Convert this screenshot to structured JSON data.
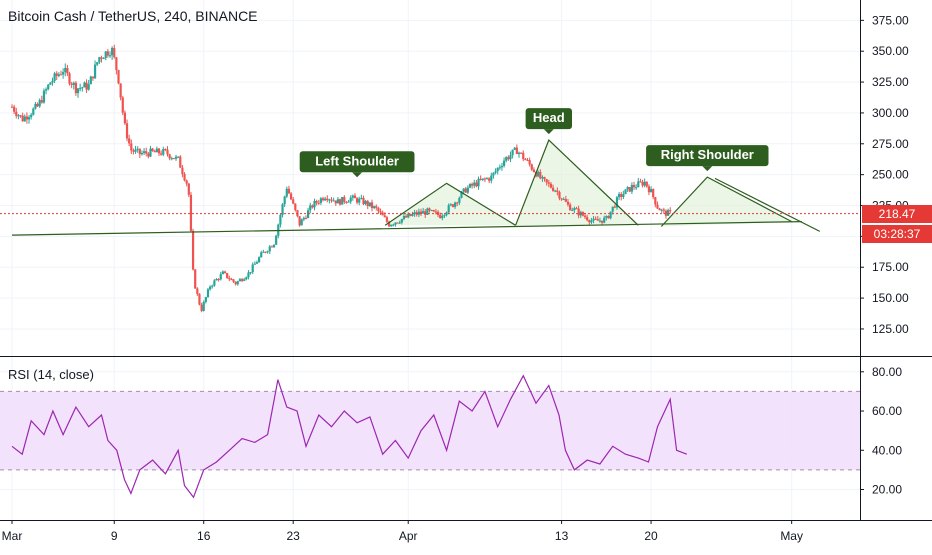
{
  "chart_data": [
    {
      "type": "candlestick",
      "title": "Bitcoin Cash / TetherUS, 240, BINANCE",
      "y_ticks": [
        "375.00",
        "350.00",
        "325.00",
        "300.00",
        "275.00",
        "250.00",
        "225.00",
        "200.00",
        "175.00",
        "150.00",
        "125.00"
      ],
      "ylim": [
        112,
        385
      ],
      "x_ticks": [
        "Mar",
        "9",
        "16",
        "23",
        "Apr",
        "13",
        "20",
        "May"
      ],
      "x_tick_days": [
        0,
        8,
        15,
        22,
        31,
        43,
        50,
        61
      ],
      "xlim_days": [
        0,
        64
      ],
      "last_price": "218.47",
      "countdown": "03:28:37",
      "grid": true,
      "up_color": "#26a69a",
      "down_color": "#ef5350",
      "price_line_color": "#e53935",
      "pattern_color": "#2e5e1f",
      "close_path": [
        [
          0.0,
          305
        ],
        [
          0.8,
          295
        ],
        [
          2.0,
          305
        ],
        [
          3.0,
          325
        ],
        [
          4.0,
          335
        ],
        [
          5.0,
          320
        ],
        [
          6.0,
          322
        ],
        [
          6.8,
          345
        ],
        [
          7.8,
          352
        ],
        [
          8.3,
          330
        ],
        [
          8.8,
          290
        ],
        [
          9.3,
          270
        ],
        [
          10.0,
          267
        ],
        [
          11.0,
          268
        ],
        [
          12.0,
          268
        ],
        [
          13.0,
          262
        ],
        [
          13.8,
          240
        ],
        [
          14.2,
          165
        ],
        [
          14.8,
          140
        ],
        [
          15.5,
          160
        ],
        [
          16.5,
          170
        ],
        [
          17.5,
          162
        ],
        [
          18.5,
          170
        ],
        [
          19.5,
          185
        ],
        [
          20.5,
          195
        ],
        [
          21.5,
          240
        ],
        [
          22.5,
          210
        ],
        [
          23.5,
          225
        ],
        [
          24.5,
          233
        ],
        [
          25.5,
          228
        ],
        [
          26.5,
          231
        ],
        [
          27.5,
          228
        ],
        [
          28.5,
          222
        ],
        [
          29.5,
          210
        ],
        [
          30.5,
          214
        ],
        [
          31.5,
          218
        ],
        [
          32.5,
          220
        ],
        [
          33.5,
          217
        ],
        [
          34.5,
          226
        ],
        [
          35.5,
          238
        ],
        [
          36.5,
          244
        ],
        [
          37.5,
          248
        ],
        [
          38.5,
          262
        ],
        [
          39.5,
          270
        ],
        [
          40.5,
          258
        ],
        [
          41.5,
          245
        ],
        [
          42.5,
          238
        ],
        [
          43.5,
          225
        ],
        [
          44.5,
          218
        ],
        [
          45.5,
          212
        ],
        [
          46.5,
          214
        ],
        [
          47.5,
          232
        ],
        [
          48.5,
          240
        ],
        [
          49.5,
          244
        ],
        [
          50.0,
          236
        ],
        [
          50.5,
          224
        ],
        [
          51.0,
          219
        ],
        [
          51.5,
          218.47
        ]
      ],
      "annotations": [
        {
          "label": "Left Shoulder",
          "vertex": [
            27.0,
            243
          ]
        },
        {
          "label": "Head",
          "vertex": [
            42.0,
            278
          ]
        },
        {
          "label": "Right Shoulder",
          "vertex": [
            54.4,
            248
          ]
        }
      ],
      "pattern_lines": [
        [
          [
            29.2,
            209
          ],
          [
            34.0,
            243
          ],
          [
            39.4,
            209
          ]
        ],
        [
          [
            39.4,
            209
          ],
          [
            42.0,
            278
          ],
          [
            49.0,
            209
          ]
        ],
        [
          [
            50.8,
            208
          ],
          [
            54.4,
            248
          ],
          [
            61.0,
            212
          ]
        ],
        [
          [
            0.0,
            201
          ],
          [
            61.8,
            212
          ]
        ],
        [
          [
            55.0,
            247
          ],
          [
            63.2,
            204
          ]
        ]
      ]
    },
    {
      "type": "line",
      "title": "RSI (14, close)",
      "y_ticks": [
        "80.00",
        "60.00",
        "40.00",
        "20.00"
      ],
      "ylim": [
        7,
        85
      ],
      "band": [
        30,
        70
      ],
      "band_color": "#f1ddfc",
      "line_color": "#9c27b0",
      "series": [
        [
          0.0,
          42
        ],
        [
          0.8,
          38
        ],
        [
          1.5,
          55
        ],
        [
          2.5,
          48
        ],
        [
          3.2,
          60
        ],
        [
          4.0,
          48
        ],
        [
          5.0,
          62
        ],
        [
          6.0,
          52
        ],
        [
          7.0,
          58
        ],
        [
          7.5,
          45
        ],
        [
          8.2,
          40
        ],
        [
          8.8,
          25
        ],
        [
          9.3,
          18
        ],
        [
          10.0,
          30
        ],
        [
          11.0,
          35
        ],
        [
          12.0,
          28
        ],
        [
          13.0,
          40
        ],
        [
          13.5,
          22
        ],
        [
          14.2,
          16
        ],
        [
          15.0,
          30
        ],
        [
          16.0,
          34
        ],
        [
          17.0,
          40
        ],
        [
          18.0,
          46
        ],
        [
          19.0,
          44
        ],
        [
          20.0,
          48
        ],
        [
          20.8,
          76
        ],
        [
          21.5,
          62
        ],
        [
          22.3,
          60
        ],
        [
          23.0,
          42
        ],
        [
          24.0,
          58
        ],
        [
          25.0,
          52
        ],
        [
          26.0,
          60
        ],
        [
          27.0,
          54
        ],
        [
          28.0,
          57
        ],
        [
          29.0,
          38
        ],
        [
          30.0,
          45
        ],
        [
          31.0,
          36
        ],
        [
          32.0,
          50
        ],
        [
          33.0,
          58
        ],
        [
          34.0,
          40
        ],
        [
          35.0,
          65
        ],
        [
          36.0,
          60
        ],
        [
          37.0,
          70
        ],
        [
          38.0,
          52
        ],
        [
          39.0,
          66
        ],
        [
          40.0,
          78
        ],
        [
          41.0,
          64
        ],
        [
          42.0,
          73
        ],
        [
          42.8,
          58
        ],
        [
          43.3,
          40
        ],
        [
          44.0,
          30
        ],
        [
          45.0,
          35
        ],
        [
          46.0,
          33
        ],
        [
          47.0,
          42
        ],
        [
          48.0,
          38
        ],
        [
          49.0,
          36
        ],
        [
          49.8,
          34
        ],
        [
          50.5,
          52
        ],
        [
          51.5,
          66
        ],
        [
          52.0,
          40
        ],
        [
          52.8,
          38
        ]
      ]
    }
  ]
}
